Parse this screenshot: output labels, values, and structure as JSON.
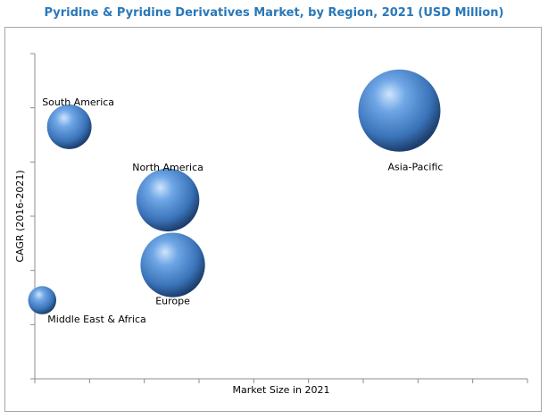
{
  "chart_data": {
    "type": "bubble",
    "title": "Pyridine & Pyridine Derivatives Market, by Region, 2021 (USD Million)",
    "xlabel": "Market Size in 2021",
    "ylabel": "CAGR (2016-2021)",
    "xlim": [
      0,
      10
    ],
    "ylim": [
      0,
      6
    ],
    "grid": false,
    "legend": "none",
    "bubble_color": "#3a73b8",
    "points": [
      {
        "label": "South America",
        "x": 0.7,
        "y": 4.65,
        "size": 1.0
      },
      {
        "label": "North America",
        "x": 2.7,
        "y": 3.3,
        "size": 2.0
      },
      {
        "label": "Europe",
        "x": 2.8,
        "y": 2.1,
        "size": 2.1
      },
      {
        "label": "Middle East & Africa",
        "x": 0.15,
        "y": 1.45,
        "size": 0.4
      },
      {
        "label": "Asia-Pacific",
        "x": 7.4,
        "y": 4.95,
        "size": 3.4
      }
    ]
  }
}
